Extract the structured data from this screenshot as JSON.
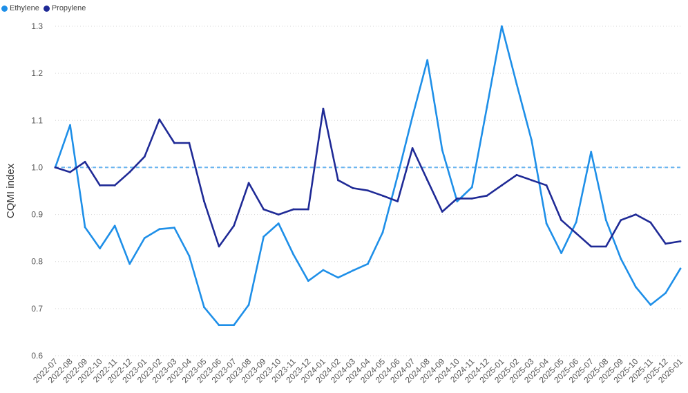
{
  "chart_data": {
    "type": "line",
    "ylabel": "CQMI index",
    "xlabel": "",
    "ylim": [
      0.6,
      1.3
    ],
    "yticks": [
      "0.6",
      "0.7",
      "0.8",
      "0.9",
      "1.0",
      "1.1",
      "1.2",
      "1.3"
    ],
    "reference_line": 1.0,
    "grid": "horizontal dotted",
    "legend_position": "top-left",
    "categories": [
      "2022-07",
      "2022-08",
      "2022-09",
      "2022-10",
      "2022-11",
      "2022-12",
      "2023-01",
      "2023-02",
      "2023-03",
      "2023-04",
      "2023-05",
      "2023-06",
      "2023-07",
      "2023-08",
      "2023-09",
      "2023-10",
      "2023-11",
      "2023-12",
      "2024-01",
      "2024-02",
      "2024-03",
      "2024-04",
      "2024-05",
      "2024-06",
      "2024-07",
      "2024-08",
      "2024-09",
      "2024-10",
      "2024-11",
      "2024-12",
      "2025-01",
      "2025-02",
      "2025-03",
      "2025-04",
      "2025-05",
      "2025-06",
      "2025-07",
      "2025-08",
      "2025-09",
      "2025-10",
      "2025-11",
      "2025-12",
      "2026-01"
    ],
    "series": [
      {
        "name": "Ethylene",
        "color": "#1e8fe8",
        "values": [
          1.0,
          1.09,
          0.873,
          0.828,
          0.876,
          0.795,
          0.85,
          0.869,
          0.872,
          0.812,
          0.703,
          0.665,
          0.665,
          0.708,
          0.853,
          0.881,
          0.815,
          0.759,
          0.782,
          0.766,
          0.781,
          0.795,
          0.862,
          0.982,
          1.108,
          1.228,
          1.037,
          0.928,
          0.958,
          1.128,
          1.3,
          1.177,
          1.058,
          0.881,
          0.818,
          0.884,
          1.033,
          0.888,
          0.806,
          0.746,
          0.708,
          0.733,
          0.785
        ]
      },
      {
        "name": "Propylene",
        "color": "#1f2a96",
        "values": [
          1.0,
          0.99,
          1.012,
          0.962,
          0.962,
          0.99,
          1.023,
          1.102,
          1.052,
          1.052,
          0.928,
          0.832,
          0.876,
          0.967,
          0.911,
          0.9,
          0.911,
          0.911,
          1.125,
          0.973,
          0.956,
          0.951,
          0.94,
          0.928,
          1.041,
          0.973,
          0.906,
          0.934,
          0.934,
          0.94,
          0.962,
          0.984,
          0.973,
          0.962,
          0.888,
          0.86,
          0.832,
          0.832,
          0.888,
          0.9,
          0.883,
          0.838,
          0.843
        ]
      }
    ],
    "reference_color": "#6bb5f0",
    "grid_color": "#d6d6d6"
  }
}
